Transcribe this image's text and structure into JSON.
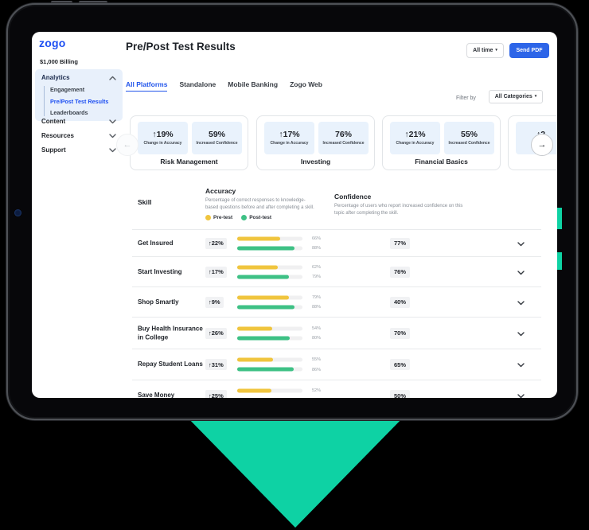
{
  "app": {
    "sidebar": {
      "logo": "zogo",
      "billing": "$1,000 Billing",
      "analytics": {
        "label": "Analytics",
        "items": [
          {
            "label": "Engagement",
            "active": false
          },
          {
            "label": "Pre/Post Test Results",
            "active": true
          },
          {
            "label": "Leaderboards",
            "active": false
          }
        ]
      },
      "collapsed_sections": [
        {
          "label": "Content"
        },
        {
          "label": "Resources"
        },
        {
          "label": "Support"
        }
      ]
    },
    "header": {
      "title": "Pre/Post Test Results",
      "time_filter_label": "All time",
      "send_pdf_label": "Send PDF"
    },
    "tabs": [
      {
        "label": "All Platforms",
        "active": true
      },
      {
        "label": "Standalone",
        "active": false
      },
      {
        "label": "Mobile Banking",
        "active": false
      },
      {
        "label": "Zogo Web",
        "active": false
      }
    ],
    "filter": {
      "label": "Filter by",
      "value": "All Categories"
    },
    "summary_cards": [
      {
        "title": "Risk Management",
        "accuracy_change": "↑19%",
        "accuracy_caption": "Change in Accuracy",
        "confidence": "59%",
        "confidence_caption": "Increased Confidence"
      },
      {
        "title": "Investing",
        "accuracy_change": "↑17%",
        "accuracy_caption": "Change in Accuracy",
        "confidence": "76%",
        "confidence_caption": "Increased Confidence"
      },
      {
        "title": "Financial Basics",
        "accuracy_change": "↑21%",
        "accuracy_caption": "Change in Accuracy",
        "confidence": "55%",
        "confidence_caption": "Increased Confidence"
      },
      {
        "title": "",
        "accuracy_change": "↑2",
        "accuracy_caption": "Ch",
        "confidence": "",
        "confidence_caption": ""
      }
    ],
    "results_table": {
      "skill_header": "Skill",
      "accuracy_header": "Accuracy",
      "accuracy_description": "Percentage of correct responses to knowledge-based questions before and after completing a skill.",
      "legend": [
        {
          "label": "Pre-test",
          "color": "#F0C53E"
        },
        {
          "label": "Post-test",
          "color": "#3EC185"
        }
      ],
      "confidence_header": "Confidence",
      "confidence_description": "Percentage of users who report increased confidence on this topic after completing the skill.",
      "rows": [
        {
          "skill": "Get Insured",
          "change": "↑22%",
          "pre_pct": 66,
          "post_pct": 88,
          "confidence": "77%"
        },
        {
          "skill": "Start Investing",
          "change": "↑17%",
          "pre_pct": 62,
          "post_pct": 79,
          "confidence": "76%"
        },
        {
          "skill": "Shop Smartly",
          "change": "↑9%",
          "pre_pct": 79,
          "post_pct": 88,
          "confidence": "40%"
        },
        {
          "skill": "Buy Health Insurance in College",
          "change": "↑26%",
          "pre_pct": 54,
          "post_pct": 80,
          "confidence": "70%"
        },
        {
          "skill": "Repay Student Loans",
          "change": "↑31%",
          "pre_pct": 55,
          "post_pct": 86,
          "confidence": "65%"
        },
        {
          "skill": "Save Money",
          "change": "↑25%",
          "pre_pct": 52,
          "post_pct": 77,
          "confidence": "50%"
        }
      ]
    }
  },
  "colors": {
    "accent_blue": "#2356EB",
    "button_blue": "#2D65E8",
    "pretest_yellow": "#F0C53E",
    "posttest_green": "#3EC185",
    "teal": "#0ED2A4",
    "stat_box_blue": "#E9F2FC"
  }
}
